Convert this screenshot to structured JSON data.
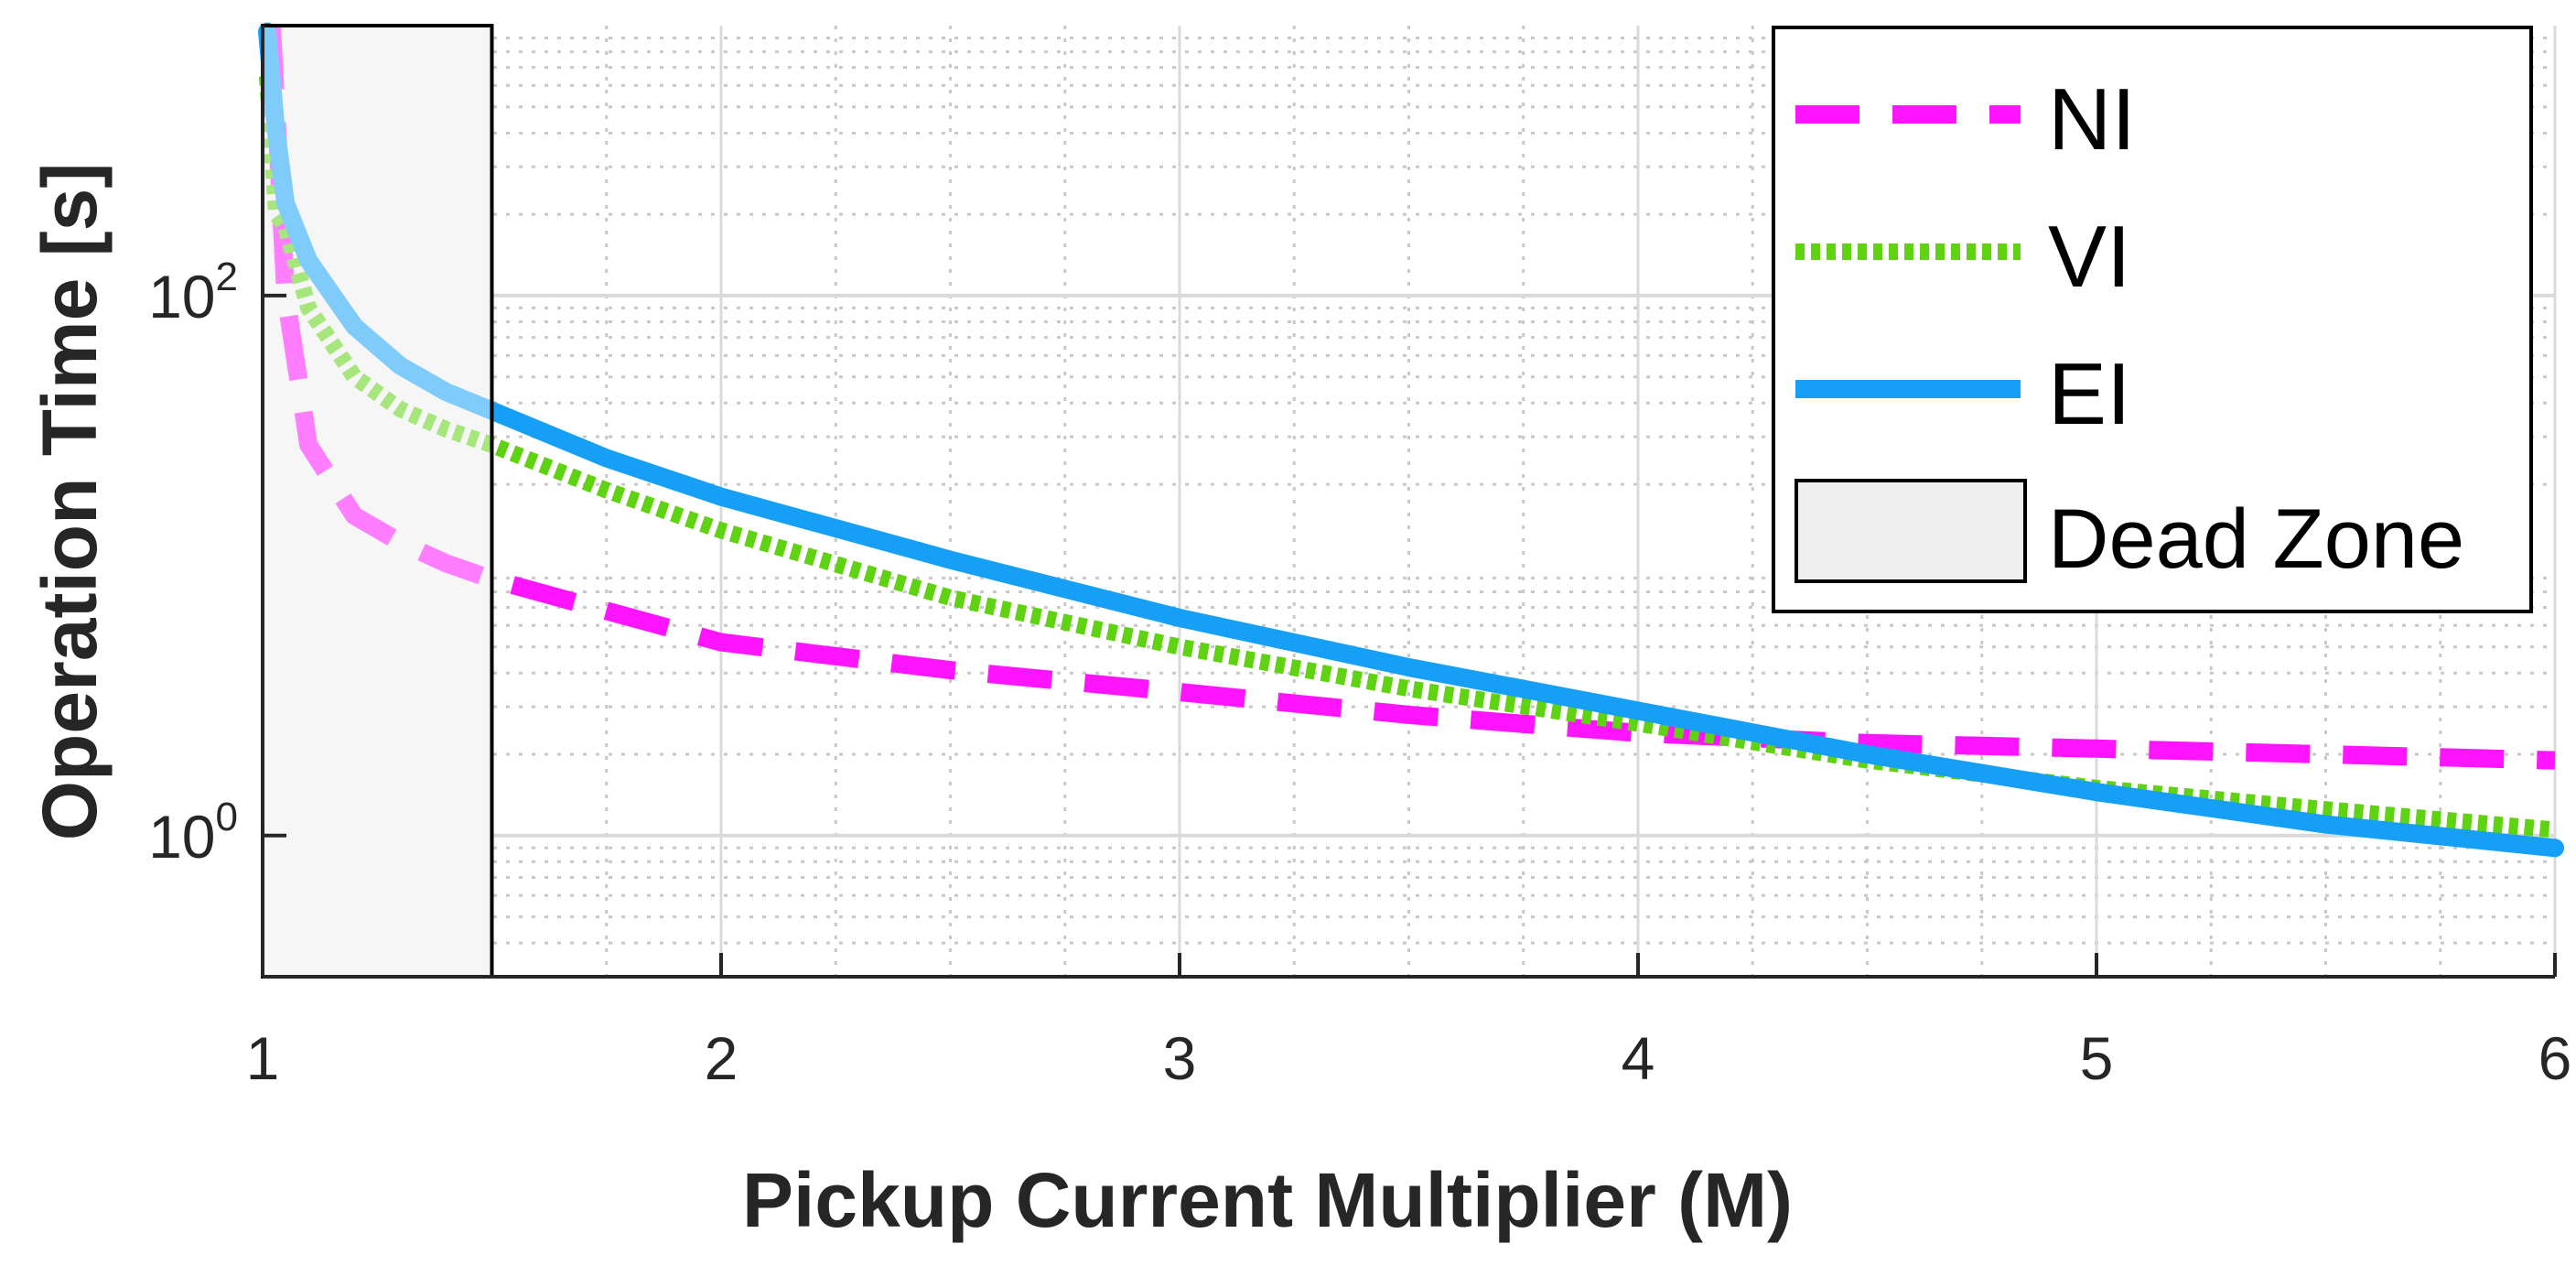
{
  "chart_data": {
    "type": "line",
    "xlabel": "Pickup Current Multiplier (M)",
    "ylabel": "Operation Time [s]",
    "xlim": [
      1,
      6
    ],
    "ylim": [
      0.3,
      1000
    ],
    "yscale": "log",
    "x_ticks": [
      1,
      2,
      3,
      4,
      5,
      6
    ],
    "x_tick_labels": [
      "1",
      "2",
      "3",
      "4",
      "5",
      "6"
    ],
    "y_ticks": [
      1,
      100
    ],
    "y_tick_labels": [
      {
        "base": "10",
        "exp": "0"
      },
      {
        "base": "10",
        "exp": "2"
      }
    ],
    "grid": true,
    "minor_grid": true,
    "legend_position": "top-right",
    "dead_zone": {
      "name": "Dead Zone",
      "x_range": [
        1,
        1.5
      ],
      "color": "#efefef"
    },
    "series": [
      {
        "name": "NI",
        "style": "dashed",
        "color": "#ff14ff",
        "x": [
          1.02,
          1.05,
          1.1,
          1.2,
          1.3,
          1.4,
          1.5,
          1.75,
          2.0,
          2.5,
          3.0,
          3.5,
          4.0,
          4.5,
          5.0,
          5.5,
          6.0
        ],
        "y": [
          1000,
          100,
          28,
          15.3,
          12.2,
          10.2,
          8.9,
          6.8,
          5.2,
          4.1,
          3.4,
          2.8,
          2.4,
          2.2,
          2.1,
          2.0,
          1.9
        ]
      },
      {
        "name": "VI",
        "style": "dotted",
        "color": "#5fd212",
        "x": [
          1.01,
          1.03,
          1.05,
          1.1,
          1.2,
          1.3,
          1.4,
          1.5,
          1.75,
          2.0,
          2.5,
          3.0,
          3.5,
          4.0,
          4.5,
          5.0,
          5.5,
          6.0
        ],
        "y": [
          650,
          200,
          180,
          90,
          50,
          38,
          32,
          28,
          19,
          13.5,
          7.6,
          5.0,
          3.5,
          2.6,
          1.9,
          1.5,
          1.25,
          1.05
        ]
      },
      {
        "name": "EI",
        "style": "solid",
        "color": "#16a0f5",
        "x": [
          1.01,
          1.03,
          1.05,
          1.1,
          1.2,
          1.3,
          1.4,
          1.5,
          1.75,
          2.0,
          2.5,
          3.0,
          3.5,
          4.0,
          4.5,
          5.0,
          5.5,
          6.0
        ],
        "y": [
          950,
          400,
          220,
          135,
          77,
          55,
          44,
          37.5,
          25,
          18,
          10.5,
          6.4,
          4.2,
          2.9,
          2.0,
          1.45,
          1.1,
          0.9
        ]
      }
    ]
  }
}
